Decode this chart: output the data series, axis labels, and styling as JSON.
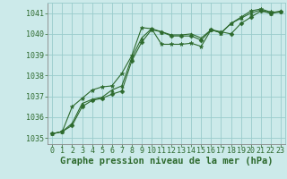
{
  "title": "Graphe pression niveau de la mer (hPa)",
  "bg_color": "#cceaea",
  "grid_color": "#99cccc",
  "line_color": "#2d6a2d",
  "marker_color": "#2d6a2d",
  "xlim": [
    -0.5,
    23.5
  ],
  "ylim": [
    1034.7,
    1041.5
  ],
  "yticks": [
    1035,
    1036,
    1037,
    1038,
    1039,
    1040,
    1041
  ],
  "xticks": [
    0,
    1,
    2,
    3,
    4,
    5,
    6,
    7,
    8,
    9,
    10,
    11,
    12,
    13,
    14,
    15,
    16,
    17,
    18,
    19,
    20,
    21,
    22,
    23
  ],
  "series": [
    [
      1035.2,
      1035.3,
      1035.6,
      1036.5,
      1036.8,
      1036.9,
      1037.1,
      1037.25,
      1038.7,
      1039.6,
      1040.2,
      1040.1,
      1039.9,
      1039.9,
      1039.9,
      1039.7,
      1040.2,
      1040.1,
      1040.0,
      1040.5,
      1040.8,
      1041.1,
      1041.0,
      1041.05
    ],
    [
      1035.2,
      1035.3,
      1035.7,
      1036.65,
      1036.85,
      1036.95,
      1037.3,
      1037.5,
      1038.85,
      1039.8,
      1040.25,
      1040.1,
      1039.95,
      1039.95,
      1040.0,
      1039.8,
      1040.2,
      1040.05,
      1040.5,
      1040.75,
      1041.0,
      1041.15,
      1041.0,
      1041.1
    ],
    [
      1035.2,
      1035.3,
      1036.5,
      1036.9,
      1037.3,
      1037.45,
      1037.5,
      1038.1,
      1038.95,
      1040.3,
      1040.25,
      1039.5,
      1039.5,
      1039.5,
      1039.55,
      1039.4,
      1040.2,
      1040.05,
      1040.5,
      1040.8,
      1041.1,
      1041.2,
      1041.05,
      1041.05
    ]
  ],
  "title_fontsize": 7.5,
  "tick_fontsize": 6.0,
  "xlabel_fontsize": 7.5
}
